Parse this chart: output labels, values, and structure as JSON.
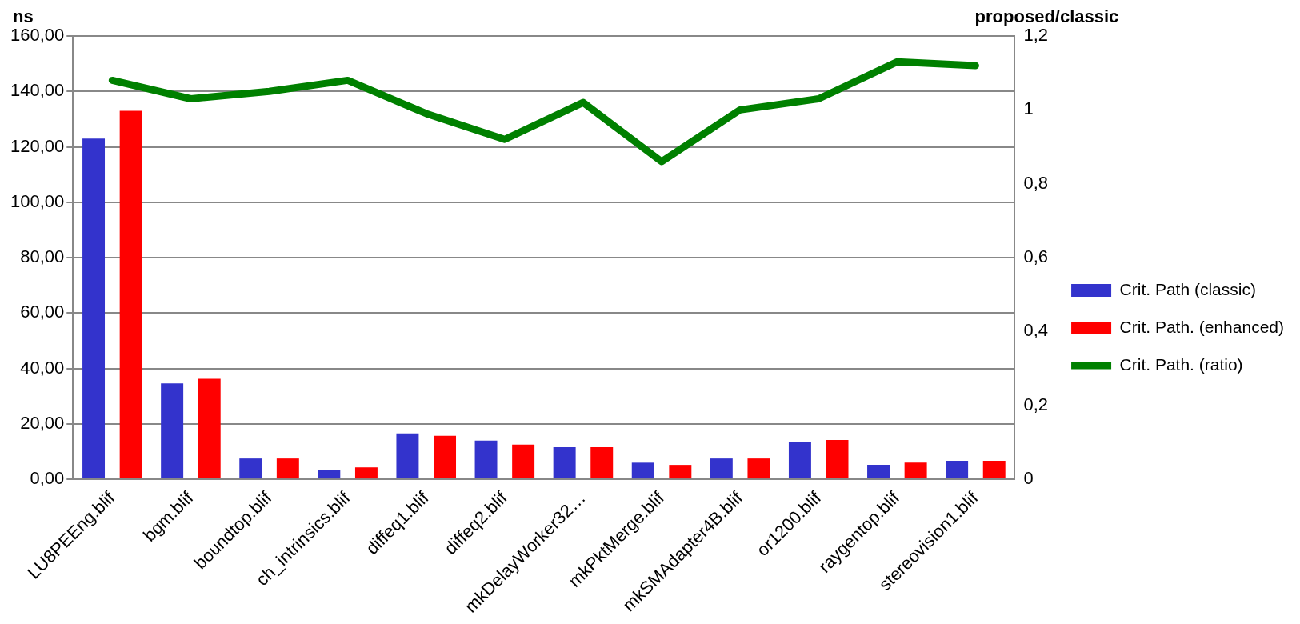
{
  "chart_data": {
    "type": "bar",
    "ylabel": "ns",
    "y2label": "proposed/classic",
    "categories": [
      "LU8PEEng.blif",
      "bgm.blif",
      "boundtop.blif",
      "ch_intrinsics.blif",
      "diffeq1.blif",
      "diffeq2.blif",
      "mkDelayWorker32…",
      "mkPktMerge.blif",
      "mkSMAdapter4B.blif",
      "or1200.blif",
      "raygentop.blif",
      "stereovision1.blif"
    ],
    "series": [
      {
        "name": "Crit. Path (classic)",
        "color": "#3333cc",
        "values": [
          123,
          34.6,
          7.5,
          3.4,
          16.6,
          14.0,
          11.6,
          6.0,
          7.5,
          13.3,
          5.2,
          6.7
        ]
      },
      {
        "name": "Crit. Path. (enhanced)",
        "color": "#ff0000",
        "values": [
          133,
          36.3,
          7.5,
          4.3,
          15.7,
          12.5,
          11.6,
          5.2,
          7.5,
          14.2,
          6.0,
          6.7
        ]
      },
      {
        "name": "Crit. Path. (ratio)",
        "type": "line",
        "axis": "y2",
        "color": "#008000",
        "values": [
          1.08,
          1.03,
          1.05,
          1.08,
          0.99,
          0.92,
          1.02,
          0.86,
          1.0,
          1.03,
          1.13,
          1.12
        ]
      }
    ],
    "ylim": [
      0,
      160
    ],
    "yticks": [
      {
        "value": 0,
        "label": "0,00"
      },
      {
        "value": 20,
        "label": "20,00"
      },
      {
        "value": 40,
        "label": "40,00"
      },
      {
        "value": 60,
        "label": "60,00"
      },
      {
        "value": 80,
        "label": "80,00"
      },
      {
        "value": 100,
        "label": "100,00"
      },
      {
        "value": 120,
        "label": "120,00"
      },
      {
        "value": 140,
        "label": "140,00"
      },
      {
        "value": 160,
        "label": "160,00"
      }
    ],
    "y2lim": [
      0,
      1.2
    ],
    "y2ticks": [
      0,
      {
        "value": 0.2,
        "label": "0,2"
      },
      {
        "value": 0.4,
        "label": "0,4"
      },
      {
        "value": 0.6,
        "label": "0,6"
      },
      {
        "value": 0.8,
        "label": "0,8"
      },
      1,
      {
        "value": 1.2,
        "label": "1,2"
      }
    ],
    "grid": "y",
    "legend": "right",
    "marker": "none"
  }
}
